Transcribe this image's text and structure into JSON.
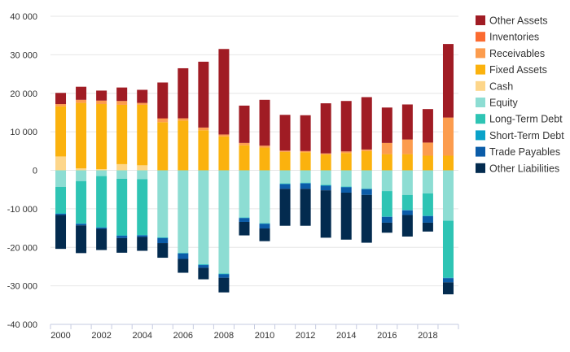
{
  "chart_data": {
    "type": "bar",
    "stacked": true,
    "title": "",
    "xlabel": "",
    "ylabel": "",
    "ylim": [
      -40000,
      40000
    ],
    "yticks": [
      40000,
      30000,
      20000,
      10000,
      0,
      -10000,
      -20000,
      -30000,
      -40000
    ],
    "ytick_labels": [
      "40 000",
      "30 000",
      "20 000",
      "10 000",
      "0",
      "-10 000",
      "-20 000",
      "-30 000",
      "-40 000"
    ],
    "xtick_labels": [
      "2000",
      "2002",
      "2004",
      "2006",
      "2008",
      "2010",
      "2012",
      "2014",
      "2016",
      "2018"
    ],
    "grid": true,
    "legend_position": "right",
    "categories": [
      "2000",
      "2001",
      "2002",
      "2003",
      "2004",
      "2005",
      "2006",
      "2007",
      "2008",
      "2009",
      "2010",
      "2011",
      "2012",
      "2013",
      "2014",
      "2015",
      "2016",
      "2017",
      "2018",
      "2019"
    ],
    "series": [
      {
        "name": "Cash",
        "color": "#fdd68a",
        "values": [
          3600,
          500,
          300,
          1600,
          1300,
          0,
          0,
          0,
          0,
          0,
          0,
          0,
          0,
          0,
          0,
          0,
          0,
          0,
          0,
          0
        ]
      },
      {
        "name": "Fixed Assets",
        "color": "#fbb20e",
        "values": [
          13000,
          17000,
          16900,
          15400,
          15700,
          12500,
          12900,
          10400,
          8800,
          6500,
          5900,
          4800,
          4700,
          4100,
          4500,
          5000,
          4200,
          4200,
          3800,
          3800
        ]
      },
      {
        "name": "Receivables",
        "color": "#fc9c4e",
        "values": [
          600,
          800,
          900,
          1000,
          500,
          900,
          600,
          700,
          500,
          600,
          500,
          300,
          300,
          300,
          400,
          400,
          2900,
          3800,
          3400,
          9900
        ]
      },
      {
        "name": "Inventories",
        "color": "#fb6b31",
        "values": [
          0,
          0,
          0,
          0,
          0,
          100,
          0,
          0,
          0,
          0,
          0,
          0,
          0,
          0,
          0,
          0,
          0,
          0,
          0,
          0
        ]
      },
      {
        "name": "Other Assets",
        "color": "#a01c24",
        "values": [
          2900,
          3400,
          2600,
          3500,
          3400,
          9300,
          13000,
          17100,
          22200,
          9700,
          11900,
          9300,
          9300,
          13000,
          13100,
          13600,
          9200,
          9100,
          8700,
          19100
        ]
      },
      {
        "name": "Equity",
        "color": "#8dddd3",
        "values": [
          -4300,
          -2800,
          -1500,
          -2200,
          -2300,
          -17400,
          -21400,
          -24400,
          -26800,
          -12200,
          -13700,
          -3400,
          -3200,
          -3800,
          -4200,
          -4700,
          -5400,
          -6400,
          -6000,
          -13100
        ]
      },
      {
        "name": "Long-Term Debt",
        "color": "#2ec4b4",
        "values": [
          -6900,
          -11000,
          -13300,
          -14700,
          -14500,
          -100,
          -100,
          -100,
          -100,
          -100,
          -100,
          -100,
          -100,
          -100,
          -100,
          -100,
          -6600,
          -3900,
          -5800,
          -14800
        ]
      },
      {
        "name": "Short-Term Debt",
        "color": "#0aa2c9",
        "values": [
          -100,
          -100,
          -100,
          -100,
          -100,
          -100,
          -100,
          -100,
          -100,
          -100,
          -100,
          -100,
          -100,
          -100,
          -100,
          -100,
          -100,
          -100,
          -100,
          -100
        ]
      },
      {
        "name": "Trade Payables",
        "color": "#0b5ca8",
        "values": [
          -300,
          -400,
          -300,
          -600,
          -400,
          -1300,
          -1400,
          -700,
          -900,
          -1000,
          -1200,
          -1200,
          -1400,
          -1200,
          -1400,
          -1500,
          -1500,
          -1200,
          -1700,
          -1100
        ]
      },
      {
        "name": "Other Liabilities",
        "color": "#032b4f",
        "values": [
          -8800,
          -7200,
          -5500,
          -3800,
          -3600,
          -3800,
          -3600,
          -3000,
          -3800,
          -3500,
          -3300,
          -9600,
          -9600,
          -12300,
          -12200,
          -12400,
          -2600,
          -5600,
          -2300,
          -3100
        ]
      }
    ]
  },
  "legend": {
    "items": [
      {
        "name": "Other Assets",
        "color": "#a01c24"
      },
      {
        "name": "Inventories",
        "color": "#fb6b31"
      },
      {
        "name": "Receivables",
        "color": "#fc9c4e"
      },
      {
        "name": "Fixed Assets",
        "color": "#fbb20e"
      },
      {
        "name": "Cash",
        "color": "#fdd68a"
      },
      {
        "name": "Equity",
        "color": "#8dddd3"
      },
      {
        "name": "Long-Term Debt",
        "color": "#2ec4b4"
      },
      {
        "name": "Short-Term Debt",
        "color": "#0aa2c9"
      },
      {
        "name": "Trade Payables",
        "color": "#0b5ca8"
      },
      {
        "name": "Other Liabilities",
        "color": "#032b4f"
      }
    ]
  }
}
